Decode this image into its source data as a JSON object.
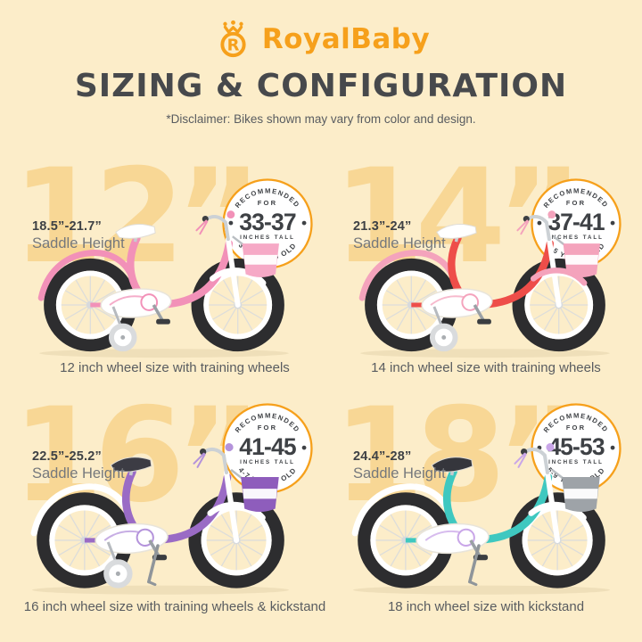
{
  "colors": {
    "background": "#FCEDC9",
    "watermark": "#F8D795",
    "orange": "#F6A01B",
    "dark": "#3E4145",
    "title_color": "#47494C",
    "text_gray": "#595C60",
    "label_gray": "#75787C",
    "tire": "#2D2D2F"
  },
  "header": {
    "logo_icon": "crown-r-icon",
    "brand": "RoyalBaby",
    "title": "SIZING & CONFIGURATION",
    "disclaimer": "*Disclaimer: Bikes shown may vary from color and design."
  },
  "quadrants": [
    {
      "size_label": "12”",
      "saddle_range": "18.5”-21.7”",
      "saddle_label": "Saddle Height",
      "badge": {
        "top_line": "RECOMMENDED",
        "for_line": "FOR",
        "range": "33-37",
        "unit": "INCHES TALL",
        "age": "3-4 YEARS OLD"
      },
      "caption": "12 inch wheel size with training wheels",
      "bike": {
        "name": "pink-12-inch-bike",
        "frame": "#F291B8",
        "rear_fender": "#F291B8",
        "front_fender": "#FFFFFF",
        "basket": "#F6A9C6",
        "accent": "#F291B8",
        "saddle": "#FFFFFF",
        "training_wheels": true,
        "kickstand": false
      }
    },
    {
      "size_label": "14”",
      "saddle_range": "21.3”-24”",
      "saddle_label": "Saddle Height",
      "badge": {
        "top_line": "RECOMMENDED",
        "for_line": "FOR",
        "range": "37-41",
        "unit": "INCHES TALL",
        "age": "3-5 YEARS OLD"
      },
      "caption": "14 inch wheel size with training wheels",
      "bike": {
        "name": "red-14-inch-bike",
        "frame": "#EE4D49",
        "rear_fender": "#F4A3BC",
        "front_fender": "#F4A3BC",
        "basket": "#F4A3BC",
        "accent": "#F4A3BC",
        "saddle": "#FFFFFF",
        "training_wheels": true,
        "kickstand": false
      }
    },
    {
      "size_label": "16”",
      "saddle_range": "22.5”-25.2”",
      "saddle_label": "Saddle Height",
      "badge": {
        "top_line": "RECOMMENDED",
        "for_line": "FOR",
        "range": "41-45",
        "unit": "INCHES TALL",
        "age": "4-7 YEARS OLD"
      },
      "caption": "16 inch wheel size with training wheels & kickstand",
      "bike": {
        "name": "purple-16-inch-bike",
        "frame": "#9A6BC5",
        "rear_fender": "#FFFFFF",
        "front_fender": "#FFFFFF",
        "basket": "#8E5DBC",
        "accent": "#B493DB",
        "saddle": "#3C3C44",
        "training_wheels": true,
        "kickstand": true
      }
    },
    {
      "size_label": "18”",
      "saddle_range": "24.4”-28”",
      "saddle_label": "Saddle Height",
      "badge": {
        "top_line": "RECOMMENDED",
        "for_line": "FOR",
        "range": "45-53",
        "unit": "INCHES TALL",
        "age": "5-9 YEARS OLD"
      },
      "caption": "18 inch wheel size with kickstand",
      "bike": {
        "name": "teal-18-inch-bike",
        "frame": "#3FC8C0",
        "rear_fender": "#FFFFFF",
        "front_fender": "#FFFFFF",
        "basket": "#9EA3A8",
        "accent": "#C9A6E8",
        "saddle": "#35363C",
        "training_wheels": false,
        "kickstand": true
      }
    }
  ]
}
